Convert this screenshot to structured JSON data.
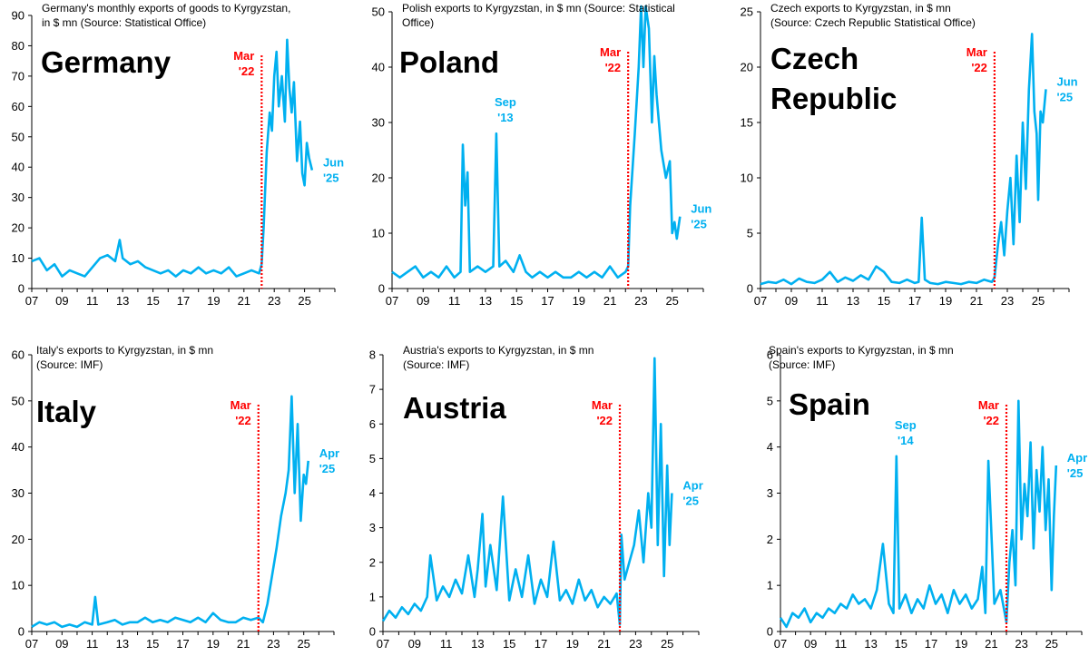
{
  "figure": {
    "line_color": "#00B0F0",
    "marker_color": "#FF0000",
    "axis_color": "#000000"
  },
  "chart_data": [
    {
      "id": "germany",
      "type": "line",
      "title": "Germany's monthly exports of goods to Kyrgyzstan, in $ mn (Source: Statistical Office)",
      "title_lines": [
        "Germany's monthly exports of goods to Kyrgyzstan,",
        "in $ mn (Source: Statistical Office)"
      ],
      "label_lines": [
        "Germany"
      ],
      "ylim": [
        0,
        90
      ],
      "yticks": [
        0,
        10,
        20,
        30,
        40,
        50,
        60,
        70,
        80,
        90
      ],
      "xlim": [
        2007,
        2027
      ],
      "xticks": [
        "07",
        "09",
        "11",
        "13",
        "15",
        "17",
        "19",
        "21",
        "23",
        "25"
      ],
      "marker": {
        "x": 2022.17,
        "label": [
          "Mar",
          "'22"
        ]
      },
      "end_label": [
        "Jun",
        "'25"
      ],
      "spikes": [],
      "series": {
        "x": [
          2007,
          2007.5,
          2008,
          2008.5,
          2009,
          2009.5,
          2010,
          2010.5,
          2011,
          2011.5,
          2012,
          2012.5,
          2012.8,
          2013,
          2013.5,
          2014,
          2014.5,
          2015,
          2015.5,
          2016,
          2016.5,
          2017,
          2017.5,
          2018,
          2018.5,
          2019,
          2019.5,
          2020,
          2020.5,
          2021,
          2021.5,
          2022,
          2022.17,
          2022.3,
          2022.5,
          2022.7,
          2022.85,
          2023,
          2023.15,
          2023.3,
          2023.5,
          2023.7,
          2023.85,
          2024,
          2024.15,
          2024.3,
          2024.5,
          2024.7,
          2024.85,
          2025,
          2025.15,
          2025.3,
          2025.5
        ],
        "values": [
          9,
          10,
          6,
          8,
          4,
          6,
          5,
          4,
          7,
          10,
          11,
          9,
          16,
          10,
          8,
          9,
          7,
          6,
          5,
          6,
          4,
          6,
          5,
          7,
          5,
          6,
          5,
          7,
          4,
          5,
          6,
          5,
          8,
          20,
          45,
          58,
          52,
          70,
          78,
          60,
          70,
          55,
          82,
          66,
          58,
          68,
          42,
          55,
          38,
          34,
          48,
          43,
          39
        ]
      }
    },
    {
      "id": "poland",
      "type": "line",
      "title": "Polish exports to Kyrgyzstan, in $ mn (Source: Statistical Office)",
      "title_lines": [
        "Polish exports to Kyrgyzstan, in $ mn (Source: Statistical",
        "Office)"
      ],
      "label_lines": [
        "Poland"
      ],
      "ylim": [
        0,
        50
      ],
      "yticks": [
        0,
        10,
        20,
        30,
        40,
        50
      ],
      "xlim": [
        2007,
        2027
      ],
      "xticks": [
        "07",
        "09",
        "11",
        "13",
        "15",
        "17",
        "19",
        "21",
        "23",
        "25"
      ],
      "marker": {
        "x": 2022.17,
        "label": [
          "Mar",
          "'22"
        ]
      },
      "end_label": [
        "Jun",
        "'25"
      ],
      "spikes": [
        {
          "x": 2013.7,
          "label": [
            "Sep",
            "'13"
          ]
        }
      ],
      "series": {
        "x": [
          2007,
          2007.5,
          2008,
          2008.5,
          2009,
          2009.5,
          2010,
          2010.5,
          2011,
          2011.4,
          2011.55,
          2011.7,
          2011.85,
          2012,
          2012.5,
          2013,
          2013.5,
          2013.7,
          2013.9,
          2014.3,
          2014.8,
          2015.2,
          2015.6,
          2016,
          2016.5,
          2017,
          2017.5,
          2018,
          2018.5,
          2019,
          2019.5,
          2020,
          2020.5,
          2021,
          2021.5,
          2022,
          2022.17,
          2022.3,
          2022.6,
          2022.85,
          2023,
          2023.15,
          2023.3,
          2023.5,
          2023.7,
          2023.85,
          2024,
          2024.3,
          2024.6,
          2024.85,
          2025,
          2025.15,
          2025.3,
          2025.5
        ],
        "values": [
          3,
          2,
          3,
          4,
          2,
          3,
          2,
          4,
          2,
          3,
          26,
          15,
          21,
          3,
          4,
          3,
          4,
          28,
          4,
          5,
          3,
          6,
          3,
          2,
          3,
          2,
          3,
          2,
          2,
          3,
          2,
          3,
          2,
          4,
          2,
          3,
          4,
          15,
          28,
          40,
          51,
          40,
          51,
          47,
          30,
          42,
          35,
          25,
          20,
          23,
          10,
          12,
          9,
          13
        ]
      }
    },
    {
      "id": "czech",
      "type": "line",
      "title": "Czech exports to Kyrgyzstan, in $ mn (Source: Czech Republic Statistical Office)",
      "title_lines": [
        "Czech exports to Kyrgyzstan, in $ mn",
        "(Source: Czech Republic Statistical Office)"
      ],
      "label_lines": [
        "Czech",
        "Republic"
      ],
      "ylim": [
        0,
        25
      ],
      "yticks": [
        0,
        5,
        10,
        15,
        20,
        25
      ],
      "xlim": [
        2007,
        2027
      ],
      "xticks": [
        "07",
        "09",
        "11",
        "13",
        "15",
        "17",
        "19",
        "21",
        "23",
        "25"
      ],
      "marker": {
        "x": 2022.17,
        "label": [
          "Mar",
          "'22"
        ]
      },
      "end_label": [
        "Jun",
        "'25"
      ],
      "spikes": [],
      "series": {
        "x": [
          2007,
          2007.5,
          2008,
          2008.5,
          2009,
          2009.5,
          2010,
          2010.5,
          2011,
          2011.5,
          2012,
          2012.5,
          2013,
          2013.5,
          2014,
          2014.5,
          2015,
          2015.5,
          2016,
          2016.5,
          2017,
          2017.25,
          2017.45,
          2017.65,
          2018,
          2018.5,
          2019,
          2019.5,
          2020,
          2020.5,
          2021,
          2021.5,
          2022,
          2022.17,
          2022.4,
          2022.6,
          2022.8,
          2023,
          2023.2,
          2023.4,
          2023.6,
          2023.8,
          2024,
          2024.2,
          2024.4,
          2024.6,
          2024.75,
          2024.9,
          2025,
          2025.15,
          2025.3,
          2025.5
        ],
        "values": [
          0.4,
          0.6,
          0.5,
          0.8,
          0.4,
          0.9,
          0.6,
          0.5,
          0.8,
          1.5,
          0.6,
          1.0,
          0.7,
          1.2,
          0.8,
          2.0,
          1.5,
          0.6,
          0.5,
          0.8,
          0.5,
          0.6,
          6.4,
          0.8,
          0.5,
          0.4,
          0.6,
          0.5,
          0.4,
          0.6,
          0.5,
          0.8,
          0.6,
          1.0,
          4.0,
          6.0,
          3.0,
          7.0,
          10.0,
          4.0,
          12.0,
          6.0,
          15.0,
          9.0,
          18.0,
          23.0,
          16.0,
          14.0,
          8.0,
          16.0,
          15.0,
          18.0
        ]
      }
    },
    {
      "id": "italy",
      "type": "line",
      "title": "Italy's exports to Kyrgyzstan, in $ mn (Source: IMF)",
      "title_lines": [
        "Italy's exports to Kyrgyzstan, in $ mn",
        "(Source: IMF)"
      ],
      "label_lines": [
        "Italy"
      ],
      "ylim": [
        0,
        60
      ],
      "yticks": [
        0,
        10,
        20,
        30,
        40,
        50,
        60
      ],
      "xlim": [
        2007,
        2027
      ],
      "xticks": [
        "07",
        "09",
        "11",
        "13",
        "15",
        "17",
        "19",
        "21",
        "23",
        "25"
      ],
      "marker": {
        "x": 2022.0,
        "label": [
          "Mar",
          "'22"
        ]
      },
      "end_label": [
        "Apr",
        "'25"
      ],
      "spikes": [],
      "series": {
        "x": [
          2007,
          2007.5,
          2008,
          2008.5,
          2009,
          2009.5,
          2010,
          2010.5,
          2011,
          2011.2,
          2011.4,
          2012,
          2012.5,
          2013,
          2013.5,
          2014,
          2014.5,
          2015,
          2015.5,
          2016,
          2016.5,
          2017,
          2017.5,
          2018,
          2018.5,
          2019,
          2019.5,
          2020,
          2020.5,
          2021,
          2021.5,
          2022,
          2022.3,
          2022.6,
          2022.9,
          2023.2,
          2023.5,
          2023.8,
          2024,
          2024.2,
          2024.4,
          2024.6,
          2024.8,
          2025,
          2025.15,
          2025.3
        ],
        "values": [
          1,
          2,
          1.5,
          2,
          1,
          1.5,
          1,
          2,
          1.5,
          7.5,
          1.5,
          2,
          2.5,
          1.5,
          2,
          2,
          3,
          2,
          2.5,
          2,
          3,
          2.5,
          2,
          3,
          2,
          4,
          2.5,
          2,
          2,
          3,
          2.5,
          3,
          2,
          6,
          12,
          18,
          25,
          30,
          35,
          51,
          30,
          45,
          24,
          34,
          32,
          37
        ]
      }
    },
    {
      "id": "austria",
      "type": "line",
      "title": "Austria's exports to Kyrgyzstan, in $ mn (Source: IMF)",
      "title_lines": [
        "Austria's exports to Kyrgyzstan, in $ mn",
        "(Source: IMF)"
      ],
      "label_lines": [
        "Austria"
      ],
      "ylim": [
        0,
        8
      ],
      "yticks": [
        0,
        1,
        2,
        3,
        4,
        5,
        6,
        7,
        8
      ],
      "xlim": [
        2007,
        2027
      ],
      "xticks": [
        "07",
        "09",
        "11",
        "13",
        "15",
        "17",
        "19",
        "21",
        "23",
        "25"
      ],
      "marker": {
        "x": 2022.0,
        "label": [
          "Mar",
          "'22"
        ]
      },
      "end_label": [
        "Apr",
        "'25"
      ],
      "spikes": [],
      "series": {
        "x": [
          2007,
          2007.4,
          2007.8,
          2008.2,
          2008.6,
          2009,
          2009.4,
          2009.8,
          2010,
          2010.4,
          2010.8,
          2011.2,
          2011.6,
          2012,
          2012.4,
          2012.8,
          2013,
          2013.3,
          2013.5,
          2013.8,
          2014.2,
          2014.6,
          2015,
          2015.4,
          2015.8,
          2016.2,
          2016.6,
          2017,
          2017.4,
          2017.8,
          2018.2,
          2018.6,
          2019,
          2019.4,
          2019.8,
          2020.2,
          2020.6,
          2021,
          2021.4,
          2021.8,
          2022,
          2022.1,
          2022.3,
          2022.6,
          2022.9,
          2023.2,
          2023.5,
          2023.8,
          2024,
          2024.2,
          2024.4,
          2024.6,
          2024.8,
          2025,
          2025.15,
          2025.3
        ],
        "values": [
          0.3,
          0.6,
          0.4,
          0.7,
          0.5,
          0.8,
          0.6,
          1.0,
          2.2,
          0.9,
          1.3,
          1.0,
          1.5,
          1.1,
          2.2,
          1.0,
          1.8,
          3.4,
          1.3,
          2.5,
          1.2,
          3.9,
          0.9,
          1.8,
          1.0,
          2.2,
          0.8,
          1.5,
          1.0,
          2.6,
          0.9,
          1.2,
          0.8,
          1.5,
          0.9,
          1.2,
          0.7,
          1.0,
          0.8,
          1.1,
          0.2,
          2.8,
          1.5,
          2.0,
          2.5,
          3.5,
          2.0,
          4.0,
          3.0,
          7.9,
          2.5,
          6.0,
          1.6,
          4.8,
          2.5,
          4.0
        ]
      }
    },
    {
      "id": "spain",
      "type": "line",
      "title": "Spain's exports to Kyrgyzstan, in $ mn (Source: IMF)",
      "title_lines": [
        "Spain's exports to Kyrgyzstan, in $ mn",
        "(Source: IMF)"
      ],
      "label_lines": [
        "Spain"
      ],
      "ylim": [
        0,
        6
      ],
      "yticks": [
        0,
        1,
        2,
        3,
        4,
        5,
        6
      ],
      "xlim": [
        2007,
        2027
      ],
      "xticks": [
        "07",
        "09",
        "11",
        "13",
        "15",
        "17",
        "19",
        "21",
        "23",
        "25"
      ],
      "marker": {
        "x": 2022.0,
        "label": [
          "Mar",
          "'22"
        ]
      },
      "end_label": [
        "Apr",
        "'25"
      ],
      "spikes": [
        {
          "x": 2014.7,
          "label": [
            "Sep",
            "'14"
          ]
        }
      ],
      "series": {
        "x": [
          2007,
          2007.4,
          2007.8,
          2008.2,
          2008.6,
          2009,
          2009.4,
          2009.8,
          2010.2,
          2010.6,
          2011,
          2011.4,
          2011.8,
          2012.2,
          2012.6,
          2013,
          2013.4,
          2013.8,
          2014.2,
          2014.5,
          2014.7,
          2014.9,
          2015.3,
          2015.7,
          2016.1,
          2016.5,
          2016.9,
          2017.3,
          2017.7,
          2018.1,
          2018.5,
          2018.9,
          2019.3,
          2019.7,
          2020.1,
          2020.4,
          2020.6,
          2020.8,
          2021.2,
          2021.6,
          2022,
          2022.2,
          2022.4,
          2022.6,
          2022.8,
          2023,
          2023.2,
          2023.4,
          2023.6,
          2023.8,
          2024,
          2024.2,
          2024.4,
          2024.6,
          2024.8,
          2025,
          2025.15,
          2025.3
        ],
        "values": [
          0.3,
          0.1,
          0.4,
          0.3,
          0.5,
          0.2,
          0.4,
          0.3,
          0.5,
          0.4,
          0.6,
          0.5,
          0.8,
          0.6,
          0.7,
          0.5,
          0.9,
          1.9,
          0.6,
          0.4,
          3.8,
          0.5,
          0.8,
          0.4,
          0.7,
          0.5,
          1.0,
          0.6,
          0.8,
          0.4,
          0.9,
          0.6,
          0.8,
          0.5,
          0.7,
          1.4,
          0.4,
          3.7,
          0.6,
          0.9,
          0.2,
          1.5,
          2.2,
          1.0,
          5.0,
          2.0,
          3.2,
          2.5,
          4.1,
          1.8,
          3.5,
          2.6,
          4.0,
          2.2,
          3.3,
          0.9,
          2.5,
          3.6
        ]
      }
    }
  ]
}
